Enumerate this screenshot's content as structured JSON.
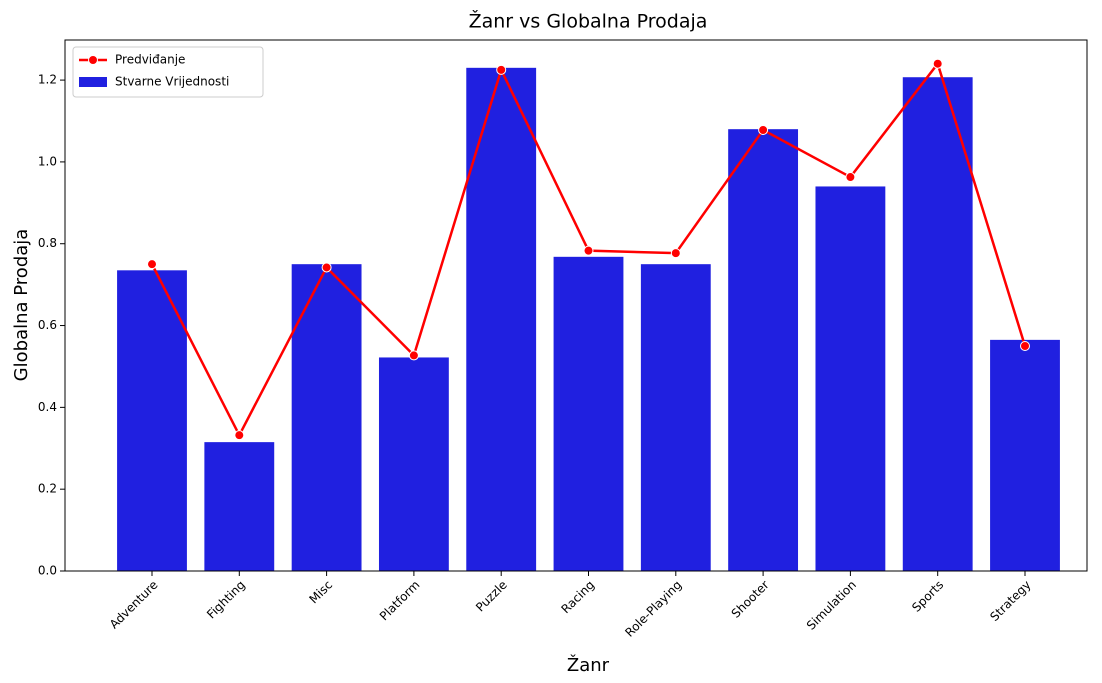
{
  "chart_data": {
    "type": "bar",
    "title": "Žanr vs Globalna Prodaja",
    "xlabel": "Žanr",
    "ylabel": "Globalna Prodaja",
    "categories": [
      "Adventure",
      "Fighting",
      "Misc",
      "Platform",
      "Puzzle",
      "Racing",
      "Role-Playing",
      "Shooter",
      "Simulation",
      "Sports",
      "Strategy"
    ],
    "series": [
      {
        "name": "Predviđanje",
        "kind": "line",
        "color": "#ff0000",
        "values": [
          0.75,
          0.332,
          0.742,
          0.527,
          1.225,
          0.783,
          0.777,
          1.078,
          0.963,
          1.24,
          0.55
        ]
      },
      {
        "name": "Stvarne Vrijednosti",
        "kind": "bar",
        "color": "#2020e0",
        "values": [
          0.735,
          0.315,
          0.75,
          0.522,
          1.23,
          0.768,
          0.75,
          1.08,
          0.94,
          1.207,
          0.565
        ]
      }
    ],
    "ylim": [
      0,
      1.298
    ],
    "yticks": [
      {
        "value": 0,
        "label": "0.0"
      },
      {
        "value": 0.2,
        "label": "0.2"
      },
      {
        "value": 0.4,
        "label": "0.4"
      },
      {
        "value": 0.6,
        "label": "0.6"
      },
      {
        "value": 0.8,
        "label": "0.8"
      },
      {
        "value": 1.0,
        "label": "1.0"
      },
      {
        "value": 1.2,
        "label": "1.2"
      }
    ],
    "grid": false,
    "legend": "upper left"
  }
}
